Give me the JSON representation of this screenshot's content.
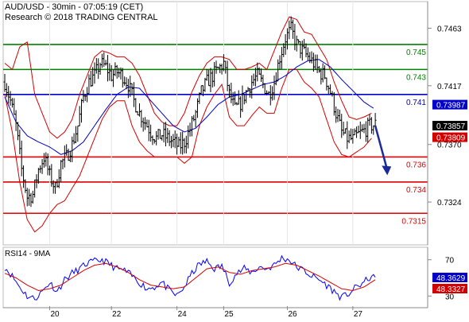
{
  "header": {
    "title": "AUD/USD - 30min - 07:05:19 (CET)",
    "copyright": "Research © 2018 TRADING CENTRAL"
  },
  "colors": {
    "candle": "#000000",
    "band": "#d40000",
    "ma_blue": "#0000c8",
    "support": "#e00000",
    "resistance_green": "#008000",
    "pivot_blue": "#0000c8",
    "rsi": "#0000ff",
    "rsi_ma": "#d40000",
    "grid": "#888888"
  },
  "chart_data": [
    {
      "type": "line",
      "name": "price",
      "y_ticks": [
        "0.7463",
        "0.7417",
        "0.7370",
        "0.7324"
      ],
      "y_tick_values": [
        0.7463,
        0.7417,
        0.737,
        0.7324
      ],
      "ylim": [
        0.7291,
        0.7483
      ],
      "x_tick_labels": [
        "20",
        "22",
        "24",
        "25",
        "26",
        "27"
      ],
      "x_tick_index": [
        24,
        57,
        92,
        117,
        151,
        186
      ],
      "num_bars": 210,
      "levels": [
        {
          "label": "0.745",
          "value": 0.745,
          "role": "resistance"
        },
        {
          "label": "0.743",
          "value": 0.743,
          "role": "resistance"
        },
        {
          "label": "0.741",
          "value": 0.741,
          "role": "pivot"
        },
        {
          "label": "0.736",
          "value": 0.736,
          "role": "support"
        },
        {
          "label": "0.734",
          "value": 0.734,
          "role": "support"
        },
        {
          "label": "0.7315",
          "value": 0.7315,
          "role": "support"
        }
      ],
      "price_badges": [
        {
          "label": "0.73987",
          "value": 0.73987,
          "kind": "ma_blue"
        },
        {
          "label": "0.73857",
          "value": 0.73857,
          "kind": "last"
        },
        {
          "label": "0.73809",
          "value": 0.73809,
          "kind": "band"
        }
      ],
      "close_path": [
        [
          0,
          0.742
        ],
        [
          3,
          0.7405
        ],
        [
          6,
          0.7385
        ],
        [
          9,
          0.735
        ],
        [
          12,
          0.7328
        ],
        [
          15,
          0.733
        ],
        [
          18,
          0.735
        ],
        [
          21,
          0.736
        ],
        [
          24,
          0.7345
        ],
        [
          27,
          0.7335
        ],
        [
          30,
          0.7355
        ],
        [
          33,
          0.736
        ],
        [
          36,
          0.737
        ],
        [
          39,
          0.7385
        ],
        [
          42,
          0.7408
        ],
        [
          45,
          0.742
        ],
        [
          48,
          0.7425
        ],
        [
          51,
          0.7435
        ],
        [
          54,
          0.7432
        ],
        [
          57,
          0.7425
        ],
        [
          60,
          0.7428
        ],
        [
          63,
          0.7425
        ],
        [
          66,
          0.7418
        ],
        [
          69,
          0.7405
        ],
        [
          72,
          0.7395
        ],
        [
          75,
          0.7388
        ],
        [
          78,
          0.738
        ],
        [
          81,
          0.7375
        ],
        [
          84,
          0.7378
        ],
        [
          87,
          0.7375
        ],
        [
          90,
          0.7372
        ],
        [
          93,
          0.7368
        ],
        [
          96,
          0.7372
        ],
        [
          99,
          0.7382
        ],
        [
          102,
          0.7395
        ],
        [
          105,
          0.7412
        ],
        [
          108,
          0.742
        ],
        [
          111,
          0.7425
        ],
        [
          114,
          0.743
        ],
        [
          117,
          0.7435
        ],
        [
          120,
          0.741
        ],
        [
          123,
          0.7398
        ],
        [
          126,
          0.7403
        ],
        [
          129,
          0.7412
        ],
        [
          132,
          0.742
        ],
        [
          135,
          0.7425
        ],
        [
          138,
          0.7418
        ],
        [
          141,
          0.741
        ],
        [
          144,
          0.742
        ],
        [
          147,
          0.744
        ],
        [
          150,
          0.7455
        ],
        [
          153,
          0.7462
        ],
        [
          156,
          0.745
        ],
        [
          159,
          0.7445
        ],
        [
          162,
          0.744
        ],
        [
          165,
          0.7435
        ],
        [
          168,
          0.7428
        ],
        [
          171,
          0.7425
        ],
        [
          174,
          0.7412
        ],
        [
          177,
          0.7395
        ],
        [
          180,
          0.738
        ],
        [
          183,
          0.7375
        ],
        [
          186,
          0.7374
        ],
        [
          189,
          0.7378
        ],
        [
          192,
          0.7381
        ],
        [
          195,
          0.7385
        ],
        [
          198,
          0.7386
        ]
      ],
      "upper_band_path": [
        [
          0,
          0.7435
        ],
        [
          4,
          0.743
        ],
        [
          8,
          0.7448
        ],
        [
          12,
          0.7452
        ],
        [
          16,
          0.741
        ],
        [
          20,
          0.7395
        ],
        [
          24,
          0.738
        ],
        [
          28,
          0.7375
        ],
        [
          32,
          0.738
        ],
        [
          36,
          0.739
        ],
        [
          40,
          0.741
        ],
        [
          44,
          0.7425
        ],
        [
          48,
          0.744
        ],
        [
          52,
          0.7445
        ],
        [
          56,
          0.7443
        ],
        [
          60,
          0.744
        ],
        [
          64,
          0.744
        ],
        [
          68,
          0.7435
        ],
        [
          72,
          0.7425
        ],
        [
          76,
          0.741
        ],
        [
          80,
          0.7395
        ],
        [
          84,
          0.7388
        ],
        [
          88,
          0.7385
        ],
        [
          92,
          0.7385
        ],
        [
          96,
          0.7395
        ],
        [
          100,
          0.7412
        ],
        [
          104,
          0.7425
        ],
        [
          108,
          0.7435
        ],
        [
          112,
          0.744
        ],
        [
          116,
          0.744
        ],
        [
          120,
          0.7438
        ],
        [
          124,
          0.743
        ],
        [
          128,
          0.743
        ],
        [
          132,
          0.7432
        ],
        [
          136,
          0.7435
        ],
        [
          140,
          0.743
        ],
        [
          144,
          0.7445
        ],
        [
          148,
          0.746
        ],
        [
          152,
          0.7472
        ],
        [
          156,
          0.747
        ],
        [
          160,
          0.746
        ],
        [
          164,
          0.7458
        ],
        [
          168,
          0.7448
        ],
        [
          172,
          0.7438
        ],
        [
          176,
          0.742
        ],
        [
          180,
          0.7405
        ],
        [
          184,
          0.7392
        ],
        [
          188,
          0.739
        ],
        [
          192,
          0.7392
        ],
        [
          196,
          0.7395
        ]
      ],
      "lower_band_path": [
        [
          0,
          0.741
        ],
        [
          4,
          0.738
        ],
        [
          8,
          0.734
        ],
        [
          12,
          0.731
        ],
        [
          16,
          0.73
        ],
        [
          20,
          0.7305
        ],
        [
          24,
          0.7315
        ],
        [
          28,
          0.7322
        ],
        [
          32,
          0.7325
        ],
        [
          36,
          0.7335
        ],
        [
          40,
          0.7345
        ],
        [
          44,
          0.736
        ],
        [
          48,
          0.7375
        ],
        [
          52,
          0.739
        ],
        [
          56,
          0.74
        ],
        [
          60,
          0.7405
        ],
        [
          64,
          0.7405
        ],
        [
          68,
          0.7385
        ],
        [
          72,
          0.7372
        ],
        [
          76,
          0.7365
        ],
        [
          80,
          0.736
        ],
        [
          84,
          0.736
        ],
        [
          88,
          0.736
        ],
        [
          92,
          0.736
        ],
        [
          96,
          0.7355
        ],
        [
          100,
          0.736
        ],
        [
          104,
          0.7385
        ],
        [
          108,
          0.74
        ],
        [
          112,
          0.741
        ],
        [
          116,
          0.7418
        ],
        [
          120,
          0.7392
        ],
        [
          124,
          0.7385
        ],
        [
          128,
          0.7385
        ],
        [
          132,
          0.7393
        ],
        [
          136,
          0.74
        ],
        [
          140,
          0.7395
        ],
        [
          144,
          0.7395
        ],
        [
          148,
          0.7415
        ],
        [
          152,
          0.743
        ],
        [
          156,
          0.743
        ],
        [
          160,
          0.742
        ],
        [
          164,
          0.7415
        ],
        [
          168,
          0.7408
        ],
        [
          172,
          0.739
        ],
        [
          176,
          0.7372
        ],
        [
          180,
          0.7362
        ],
        [
          184,
          0.736
        ],
        [
          188,
          0.7364
        ],
        [
          192,
          0.7368
        ],
        [
          196,
          0.7375
        ]
      ],
      "ma_path": [
        [
          0,
          0.7408
        ],
        [
          6,
          0.7388
        ],
        [
          12,
          0.7377
        ],
        [
          18,
          0.7372
        ],
        [
          24,
          0.7368
        ],
        [
          30,
          0.7362
        ],
        [
          36,
          0.7365
        ],
        [
          42,
          0.7372
        ],
        [
          48,
          0.7385
        ],
        [
          54,
          0.7398
        ],
        [
          60,
          0.741
        ],
        [
          66,
          0.7416
        ],
        [
          72,
          0.7415
        ],
        [
          78,
          0.7405
        ],
        [
          84,
          0.7395
        ],
        [
          90,
          0.7385
        ],
        [
          96,
          0.738
        ],
        [
          102,
          0.7383
        ],
        [
          108,
          0.7392
        ],
        [
          114,
          0.7402
        ],
        [
          120,
          0.7408
        ],
        [
          126,
          0.741
        ],
        [
          132,
          0.7414
        ],
        [
          138,
          0.7418
        ],
        [
          144,
          0.742
        ],
        [
          150,
          0.7425
        ],
        [
          156,
          0.7432
        ],
        [
          162,
          0.7437
        ],
        [
          168,
          0.7438
        ],
        [
          174,
          0.7432
        ],
        [
          180,
          0.7422
        ],
        [
          186,
          0.7413
        ],
        [
          192,
          0.7404
        ],
        [
          197,
          0.7399
        ]
      ],
      "arrow": {
        "from": [
          198,
          0.7385
        ],
        "to": [
          204,
          0.7348
        ]
      }
    },
    {
      "type": "line",
      "name": "rsi",
      "title": "RSI14 - 9MA",
      "ylim": [
        18,
        82
      ],
      "y_ticks": [
        "70",
        "30"
      ],
      "y_tick_values": [
        70,
        30
      ],
      "badges": [
        {
          "label": "48.3629",
          "value": 48.3629,
          "kind": "rsi"
        },
        {
          "label": "48.3327",
          "value": 48.3327,
          "kind": "rsi_ma"
        }
      ],
      "rsi_path": [
        [
          0,
          62
        ],
        [
          4,
          52
        ],
        [
          8,
          40
        ],
        [
          12,
          30
        ],
        [
          16,
          27
        ],
        [
          20,
          35
        ],
        [
          24,
          45
        ],
        [
          28,
          35
        ],
        [
          32,
          48
        ],
        [
          36,
          55
        ],
        [
          40,
          60
        ],
        [
          44,
          66
        ],
        [
          48,
          68
        ],
        [
          52,
          70
        ],
        [
          56,
          65
        ],
        [
          60,
          60
        ],
        [
          64,
          58
        ],
        [
          68,
          52
        ],
        [
          72,
          45
        ],
        [
          76,
          38
        ],
        [
          80,
          40
        ],
        [
          84,
          45
        ],
        [
          88,
          36
        ],
        [
          92,
          30
        ],
        [
          96,
          40
        ],
        [
          100,
          55
        ],
        [
          104,
          65
        ],
        [
          108,
          68
        ],
        [
          112,
          60
        ],
        [
          116,
          63
        ],
        [
          120,
          45
        ],
        [
          124,
          55
        ],
        [
          128,
          60
        ],
        [
          132,
          56
        ],
        [
          136,
          62
        ],
        [
          140,
          60
        ],
        [
          144,
          64
        ],
        [
          148,
          72
        ],
        [
          152,
          70
        ],
        [
          156,
          62
        ],
        [
          160,
          58
        ],
        [
          164,
          52
        ],
        [
          168,
          48
        ],
        [
          172,
          42
        ],
        [
          176,
          35
        ],
        [
          180,
          28
        ],
        [
          184,
          33
        ],
        [
          188,
          40
        ],
        [
          192,
          45
        ],
        [
          196,
          52
        ],
        [
          198,
          48
        ]
      ],
      "rsi_ma_path": [
        [
          0,
          55
        ],
        [
          6,
          50
        ],
        [
          12,
          42
        ],
        [
          18,
          36
        ],
        [
          24,
          38
        ],
        [
          30,
          42
        ],
        [
          36,
          50
        ],
        [
          42,
          58
        ],
        [
          48,
          64
        ],
        [
          54,
          66
        ],
        [
          60,
          62
        ],
        [
          66,
          56
        ],
        [
          72,
          48
        ],
        [
          78,
          42
        ],
        [
          84,
          40
        ],
        [
          90,
          38
        ],
        [
          96,
          40
        ],
        [
          102,
          50
        ],
        [
          108,
          60
        ],
        [
          114,
          62
        ],
        [
          120,
          56
        ],
        [
          126,
          54
        ],
        [
          132,
          58
        ],
        [
          138,
          60
        ],
        [
          144,
          62
        ],
        [
          150,
          66
        ],
        [
          156,
          64
        ],
        [
          162,
          58
        ],
        [
          168,
          52
        ],
        [
          174,
          45
        ],
        [
          180,
          38
        ],
        [
          186,
          36
        ],
        [
          192,
          40
        ],
        [
          198,
          48
        ]
      ]
    }
  ]
}
